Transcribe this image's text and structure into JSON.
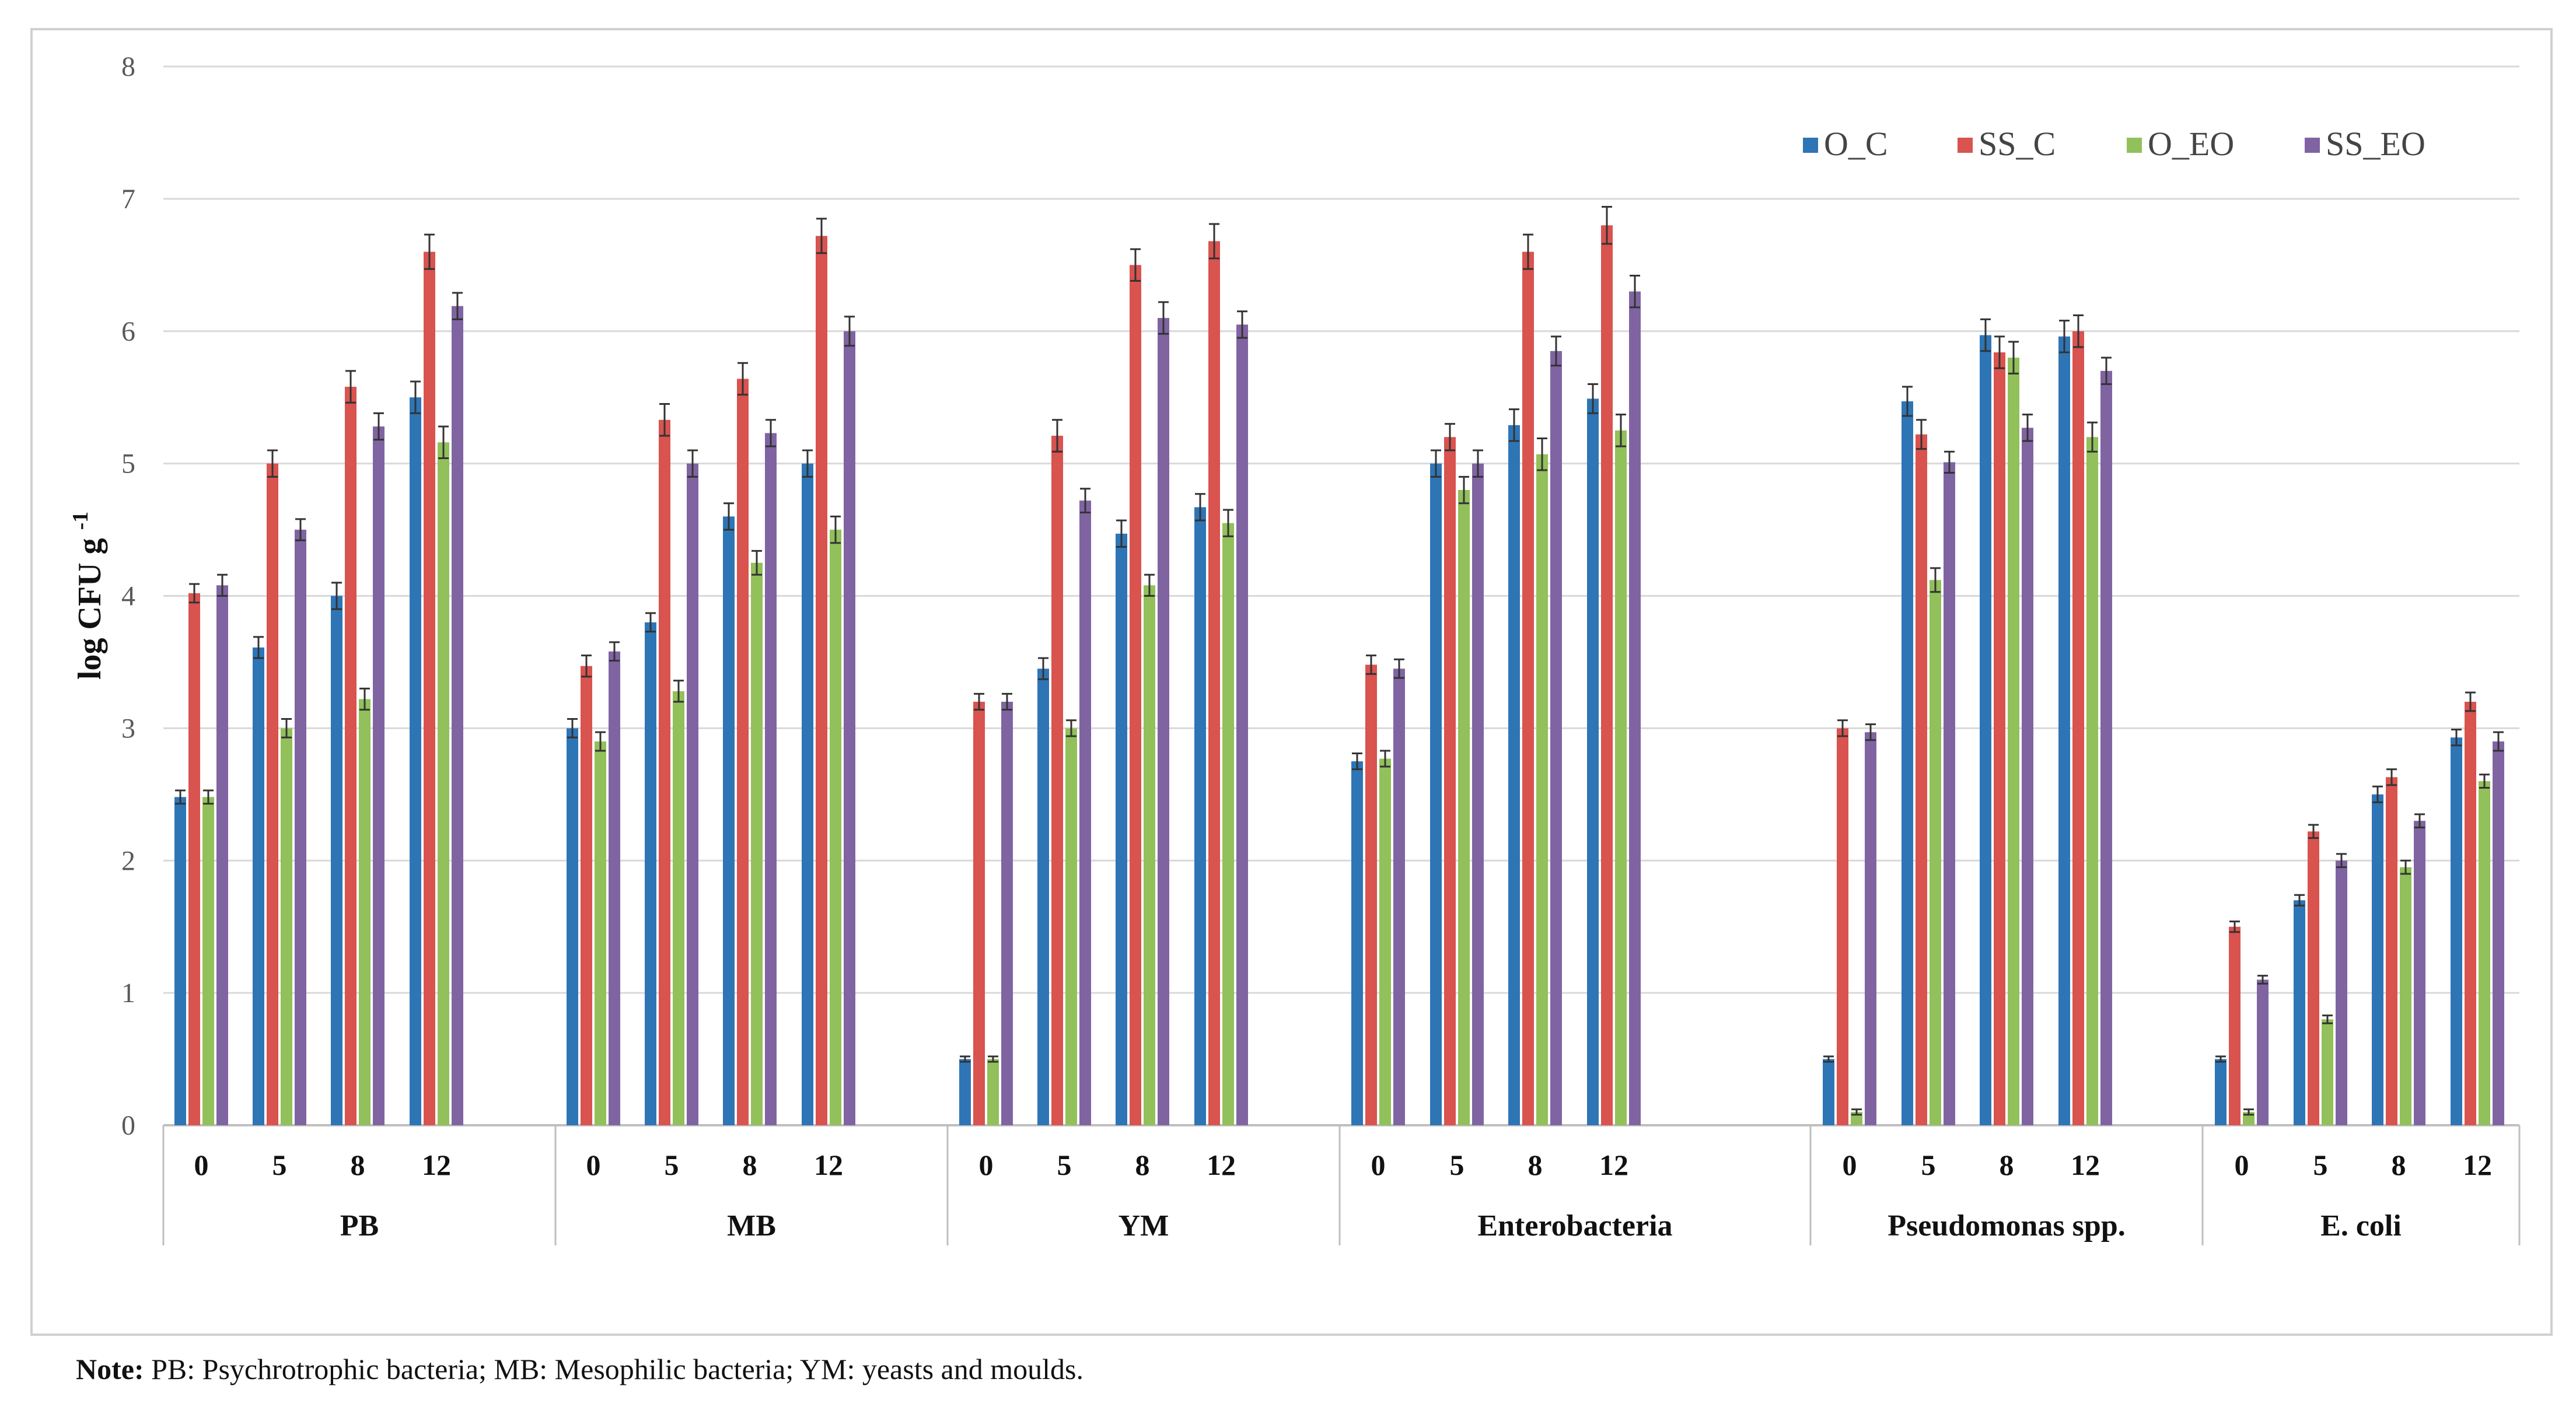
{
  "chart_data": {
    "type": "bar",
    "ylabel": "log CFU g",
    "ylabel_superscript": "-1",
    "ylim": [
      0,
      8
    ],
    "yticks": [
      0,
      1,
      2,
      3,
      4,
      5,
      6,
      7,
      8
    ],
    "grid": true,
    "legend_position": "top-right",
    "colors": {
      "O_C": "#2e75b6",
      "SS_C": "#d9534f",
      "O_EO": "#92c05a",
      "SS_EO": "#8064a2"
    },
    "series_names": [
      "O_C",
      "SS_C",
      "O_EO",
      "SS_EO"
    ],
    "groups": [
      {
        "name": "PB",
        "days": [
          "0",
          "5",
          "8",
          "12"
        ],
        "series": {
          "O_C": [
            2.48,
            3.61,
            4.0,
            5.5
          ],
          "SS_C": [
            4.02,
            5.0,
            5.58,
            6.6
          ],
          "O_EO": [
            2.48,
            3.0,
            3.22,
            5.16
          ],
          "SS_EO": [
            4.08,
            4.5,
            5.28,
            6.19
          ]
        },
        "errors": {
          "O_C": [
            0.05,
            0.08,
            0.1,
            0.12
          ],
          "SS_C": [
            0.07,
            0.1,
            0.12,
            0.13
          ],
          "O_EO": [
            0.05,
            0.07,
            0.08,
            0.12
          ],
          "SS_EO": [
            0.08,
            0.08,
            0.1,
            0.1
          ]
        }
      },
      {
        "name": "MB",
        "days": [
          "0",
          "5",
          "8",
          "12"
        ],
        "series": {
          "O_C": [
            3.0,
            3.8,
            4.6,
            5.0
          ],
          "SS_C": [
            3.47,
            5.33,
            5.64,
            6.72
          ],
          "O_EO": [
            2.9,
            3.28,
            4.25,
            4.5
          ],
          "SS_EO": [
            3.58,
            5.0,
            5.23,
            6.0
          ]
        },
        "errors": {
          "O_C": [
            0.07,
            0.07,
            0.1,
            0.1
          ],
          "SS_C": [
            0.08,
            0.12,
            0.12,
            0.13
          ],
          "O_EO": [
            0.07,
            0.08,
            0.09,
            0.1
          ],
          "SS_EO": [
            0.07,
            0.1,
            0.1,
            0.11
          ]
        }
      },
      {
        "name": "YM",
        "days": [
          "0",
          "5",
          "8",
          "12"
        ],
        "series": {
          "O_C": [
            0.5,
            3.45,
            4.47,
            4.67
          ],
          "SS_C": [
            3.2,
            5.21,
            6.5,
            6.68
          ],
          "O_EO": [
            0.5,
            3.0,
            4.08,
            4.55
          ],
          "SS_EO": [
            3.2,
            4.72,
            6.1,
            6.05
          ]
        },
        "errors": {
          "O_C": [
            0.02,
            0.08,
            0.1,
            0.1
          ],
          "SS_C": [
            0.06,
            0.12,
            0.12,
            0.13
          ],
          "O_EO": [
            0.02,
            0.06,
            0.08,
            0.1
          ],
          "SS_EO": [
            0.06,
            0.09,
            0.12,
            0.1
          ]
        }
      },
      {
        "name": "Enterobacteria",
        "days": [
          "0",
          "5",
          "8",
          "12"
        ],
        "series": {
          "O_C": [
            2.75,
            5.0,
            5.29,
            5.49
          ],
          "SS_C": [
            3.48,
            5.2,
            6.6,
            6.8
          ],
          "O_EO": [
            2.77,
            4.8,
            5.07,
            5.25
          ],
          "SS_EO": [
            3.45,
            5.0,
            5.85,
            6.3
          ]
        },
        "errors": {
          "O_C": [
            0.06,
            0.1,
            0.12,
            0.11
          ],
          "SS_C": [
            0.07,
            0.1,
            0.13,
            0.14
          ],
          "O_EO": [
            0.06,
            0.1,
            0.12,
            0.12
          ],
          "SS_EO": [
            0.07,
            0.1,
            0.11,
            0.12
          ]
        }
      },
      {
        "name": "Pseudomonas spp.",
        "days": [
          "0",
          "5",
          "8",
          "12"
        ],
        "series": {
          "O_C": [
            0.5,
            5.47,
            5.97,
            5.96
          ],
          "SS_C": [
            3.0,
            5.22,
            5.84,
            6.0
          ],
          "O_EO": [
            0.1,
            4.12,
            5.8,
            5.2
          ],
          "SS_EO": [
            2.97,
            5.01,
            5.27,
            5.7
          ]
        },
        "errors": {
          "O_C": [
            0.02,
            0.11,
            0.12,
            0.12
          ],
          "SS_C": [
            0.06,
            0.11,
            0.12,
            0.12
          ],
          "O_EO": [
            0.02,
            0.09,
            0.12,
            0.11
          ],
          "SS_EO": [
            0.06,
            0.08,
            0.1,
            0.1
          ]
        }
      },
      {
        "name": "E. coli",
        "days": [
          "0",
          "5",
          "8",
          "12"
        ],
        "series": {
          "O_C": [
            0.5,
            1.7,
            2.5,
            2.93
          ],
          "SS_C": [
            1.5,
            2.22,
            2.63,
            3.2
          ],
          "O_EO": [
            0.1,
            0.8,
            1.95,
            2.6
          ],
          "SS_EO": [
            1.1,
            2.0,
            2.3,
            2.9
          ]
        },
        "errors": {
          "O_C": [
            0.02,
            0.04,
            0.06,
            0.06
          ],
          "SS_C": [
            0.04,
            0.05,
            0.06,
            0.07
          ],
          "O_EO": [
            0.02,
            0.03,
            0.05,
            0.05
          ],
          "SS_EO": [
            0.03,
            0.05,
            0.05,
            0.07
          ]
        }
      }
    ]
  },
  "note": {
    "label": "Note:",
    "text": " PB: Psychrotrophic bacteria; MB: Mesophilic bacteria; YM: yeasts and moulds."
  }
}
